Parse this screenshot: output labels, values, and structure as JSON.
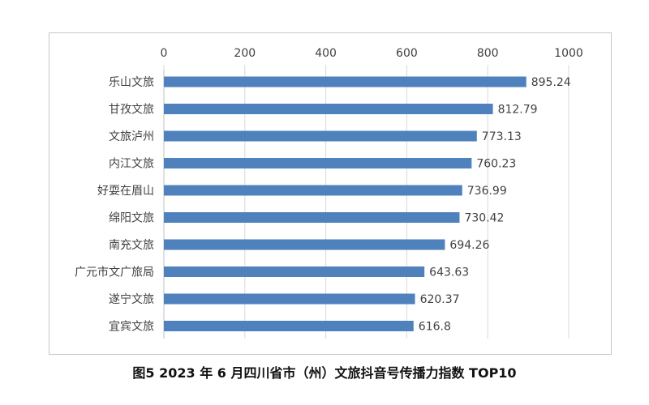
{
  "caption": "图5   2023 年 6 月四川省市（州）文旅抖音号传播力指数 TOP10",
  "colors": {
    "bar": "#4f81bd",
    "grid": "#d9d9d9",
    "text": "#404040",
    "frame": "#c8c8c8"
  },
  "chart_data": {
    "type": "bar",
    "orientation": "horizontal",
    "title": "",
    "xlabel": "",
    "ylabel": "",
    "xlim": [
      0,
      1000
    ],
    "xticks": [
      "0",
      "200",
      "400",
      "600",
      "800",
      "1000"
    ],
    "x_axis_position": "top",
    "grid": true,
    "categories": [
      "乐山文旅",
      "甘孜文旅",
      "文旅泸州",
      "内江文旅",
      "好耍在眉山",
      "绵阳文旅",
      "南充文旅",
      "广元市文广旅局",
      "遂宁文旅",
      "宜宾文旅"
    ],
    "values": [
      895.24,
      812.79,
      773.13,
      760.23,
      736.99,
      730.42,
      694.26,
      643.63,
      620.37,
      616.8
    ],
    "value_labels": [
      "895.24",
      "812.79",
      "773.13",
      "760.23",
      "736.99",
      "730.42",
      "694.26",
      "643.63",
      "620.37",
      "616.8"
    ]
  }
}
